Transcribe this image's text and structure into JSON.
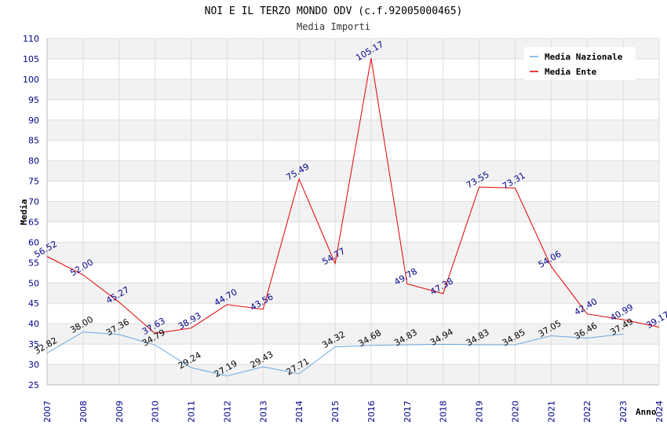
{
  "chart_data": {
    "type": "line",
    "title": "NOI E IL TERZO MONDO ODV (c.f.92005000465)",
    "subtitle": "Media Importi",
    "xlabel": "Anno",
    "ylabel": "Media",
    "ylim": [
      25,
      110
    ],
    "ytick_step": 5,
    "grid": true,
    "legend_position": "top-right",
    "x": [
      "2007",
      "2008",
      "2009",
      "2010",
      "2011",
      "2012",
      "2013",
      "2014",
      "2015",
      "2016",
      "2017",
      "2018",
      "2019",
      "2020",
      "2021",
      "2022",
      "2023",
      "2024"
    ],
    "series": [
      {
        "name": "Media Nazionale",
        "color": "#6aa8e0",
        "values": [
          32.82,
          38.0,
          37.36,
          34.79,
          29.24,
          27.19,
          29.43,
          27.71,
          34.32,
          34.68,
          34.83,
          34.94,
          34.83,
          34.85,
          37.05,
          36.46,
          37.49,
          null
        ],
        "labels": [
          "32.82",
          "38.00",
          "37.36",
          "34.79",
          "29.24",
          "27.19",
          "29.43",
          "27.71",
          "34.32",
          "34.68",
          "34.83",
          "34.94",
          "34.83",
          "34.85",
          "37.05",
          "36.46",
          "37.49",
          ""
        ]
      },
      {
        "name": "Media Ente",
        "color": "#e00000",
        "values": [
          56.52,
          52.0,
          45.27,
          37.63,
          38.93,
          44.7,
          43.56,
          75.49,
          54.77,
          105.17,
          49.78,
          47.38,
          73.55,
          73.31,
          54.06,
          42.4,
          40.99,
          39.17
        ],
        "labels": [
          "56.52",
          "52.00",
          "45.27",
          "37.63",
          "38.93",
          "44.70",
          "43.56",
          "75.49",
          "54.77",
          "105.17",
          "49.78",
          "47.38",
          "73.55",
          "73.31",
          "54.06",
          "42.40",
          "40.99",
          "39.17"
        ]
      }
    ]
  }
}
